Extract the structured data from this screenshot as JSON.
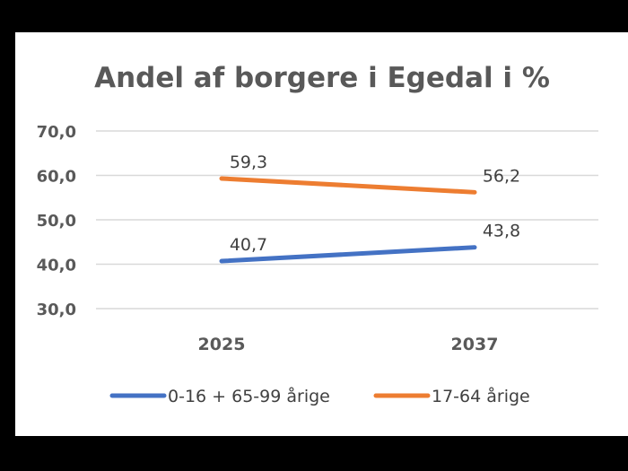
{
  "chart_data": {
    "type": "line",
    "title": "Andel af borgere i Egedal i %",
    "categories": [
      "2025",
      "2037"
    ],
    "y_tick_labels": [
      "70,0",
      "60,0",
      "50,0",
      "40,0",
      "30,0"
    ],
    "ylim": [
      30,
      70
    ],
    "grid": true,
    "legend_position": "bottom",
    "series": [
      {
        "name": "0-16 + 65-99 årige",
        "values": [
          40.7,
          43.8
        ],
        "labels": [
          "40,7",
          "43,8"
        ],
        "color": "#4472C4"
      },
      {
        "name": "17-64 årige",
        "values": [
          59.3,
          56.2
        ],
        "labels": [
          "59,3",
          "56,2"
        ],
        "color": "#ED7D31"
      }
    ]
  }
}
